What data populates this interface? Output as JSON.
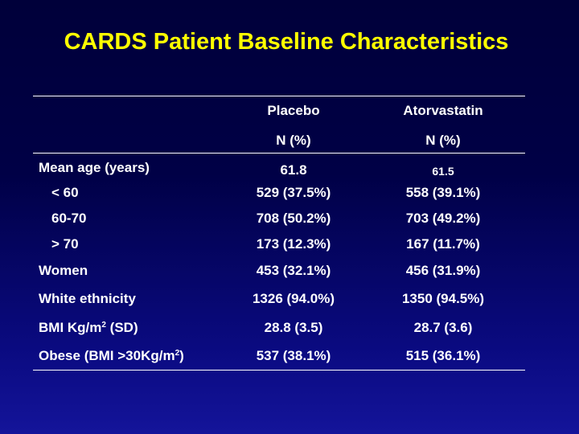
{
  "title": "CARDS Patient Baseline Characteristics",
  "columns": {
    "placebo": "Placebo",
    "atorvastatin": "Atorvastatin",
    "placebo_unit": "N (%)",
    "atorvastatin_unit": "N (%)"
  },
  "rows": [
    {
      "label": "Mean age (years)",
      "placebo": "61.8",
      "atorvastatin": "61.5"
    },
    {
      "label": "< 60",
      "placebo": "529 (37.5%)",
      "atorvastatin": "558 (39.1%)"
    },
    {
      "label": "60-70",
      "placebo": "708 (50.2%)",
      "atorvastatin": "703 (49.2%)"
    },
    {
      "label": "> 70",
      "placebo": "173 (12.3%)",
      "atorvastatin": "167 (11.7%)"
    },
    {
      "label": "Women",
      "placebo": "453 (32.1%)",
      "atorvastatin": "456 (31.9%)"
    },
    {
      "label": "White ethnicity",
      "placebo": "1326 (94.0%)",
      "atorvastatin": "1350 (94.5%)"
    },
    {
      "label_pre": "BMI Kg/m",
      "label_sup": "2",
      "label_post": " (SD)",
      "placebo": "28.8 (3.5)",
      "atorvastatin": "28.7 (3.6)"
    },
    {
      "label_pre": "Obese (BMI >30Kg/m",
      "label_sup": "2",
      "label_post": ")",
      "placebo": "537 (38.1%)",
      "atorvastatin": "515 (36.1%)"
    }
  ],
  "colors": {
    "title": "#ffff00",
    "text": "#ffffff",
    "background": "#000046"
  }
}
